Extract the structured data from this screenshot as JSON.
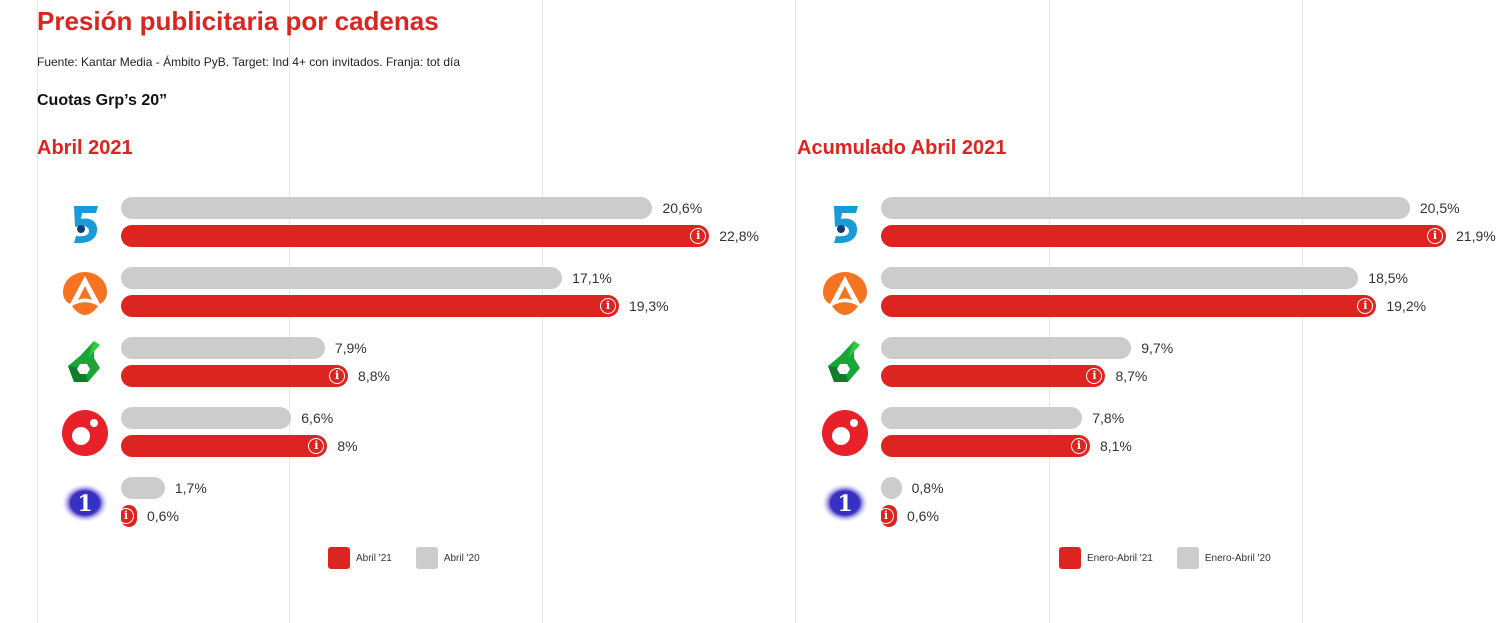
{
  "title": "Presión publicitaria por cadenas",
  "source": "Fuente: Kantar Media - Ámbito PyB. Target: Ind 4+ con invitados. Franja: tot día",
  "subtitle": "Cuotas Grp’s 20”",
  "colors": {
    "current": "#dc2520",
    "previous": "#cccccc",
    "title": "#dc2520"
  },
  "channels": [
    {
      "icon": "telecinco-logo"
    },
    {
      "icon": "antena3-logo"
    },
    {
      "icon": "lasexta-logo"
    },
    {
      "icon": "cuatro-logo"
    },
    {
      "icon": "la1-logo"
    }
  ],
  "chart_data": [
    {
      "type": "bar",
      "orientation": "horizontal",
      "title": "Abril 2021",
      "unit": "%",
      "series": [
        {
          "name": "Abril '20",
          "color": "#cccccc",
          "values": [
            20.6,
            17.1,
            7.9,
            6.6,
            1.7
          ],
          "labels": [
            "20,6%",
            "17,1%",
            "7,9%",
            "6,6%",
            "1,7%"
          ]
        },
        {
          "name": "Abril '21",
          "color": "#dc2520",
          "values": [
            22.8,
            19.3,
            8.8,
            8,
            0.6
          ],
          "labels": [
            "22,8%",
            "19,3%",
            "8,8%",
            "8%",
            "0,6%"
          ]
        }
      ],
      "legend": [
        "Abril '21",
        "Abril '20"
      ],
      "legend_position": "bottom"
    },
    {
      "type": "bar",
      "orientation": "horizontal",
      "title": "Acumulado Abril 2021",
      "unit": "%",
      "series": [
        {
          "name": "Enero-Abril '20",
          "color": "#cccccc",
          "values": [
            20.5,
            18.5,
            9.7,
            7.8,
            0.8
          ],
          "labels": [
            "20,5%",
            "18,5%",
            "9,7%",
            "7,8%",
            "0,8%"
          ]
        },
        {
          "name": "Enero-Abril '21",
          "color": "#dc2520",
          "values": [
            21.9,
            19.2,
            8.7,
            8.1,
            0.6
          ],
          "labels": [
            "21,9%",
            "19,2%",
            "8,7%",
            "8,1%",
            "0,6%"
          ]
        }
      ],
      "legend": [
        "Enero-Abril '21",
        "Enero-Abril '20"
      ],
      "legend_position": "bottom"
    }
  ]
}
